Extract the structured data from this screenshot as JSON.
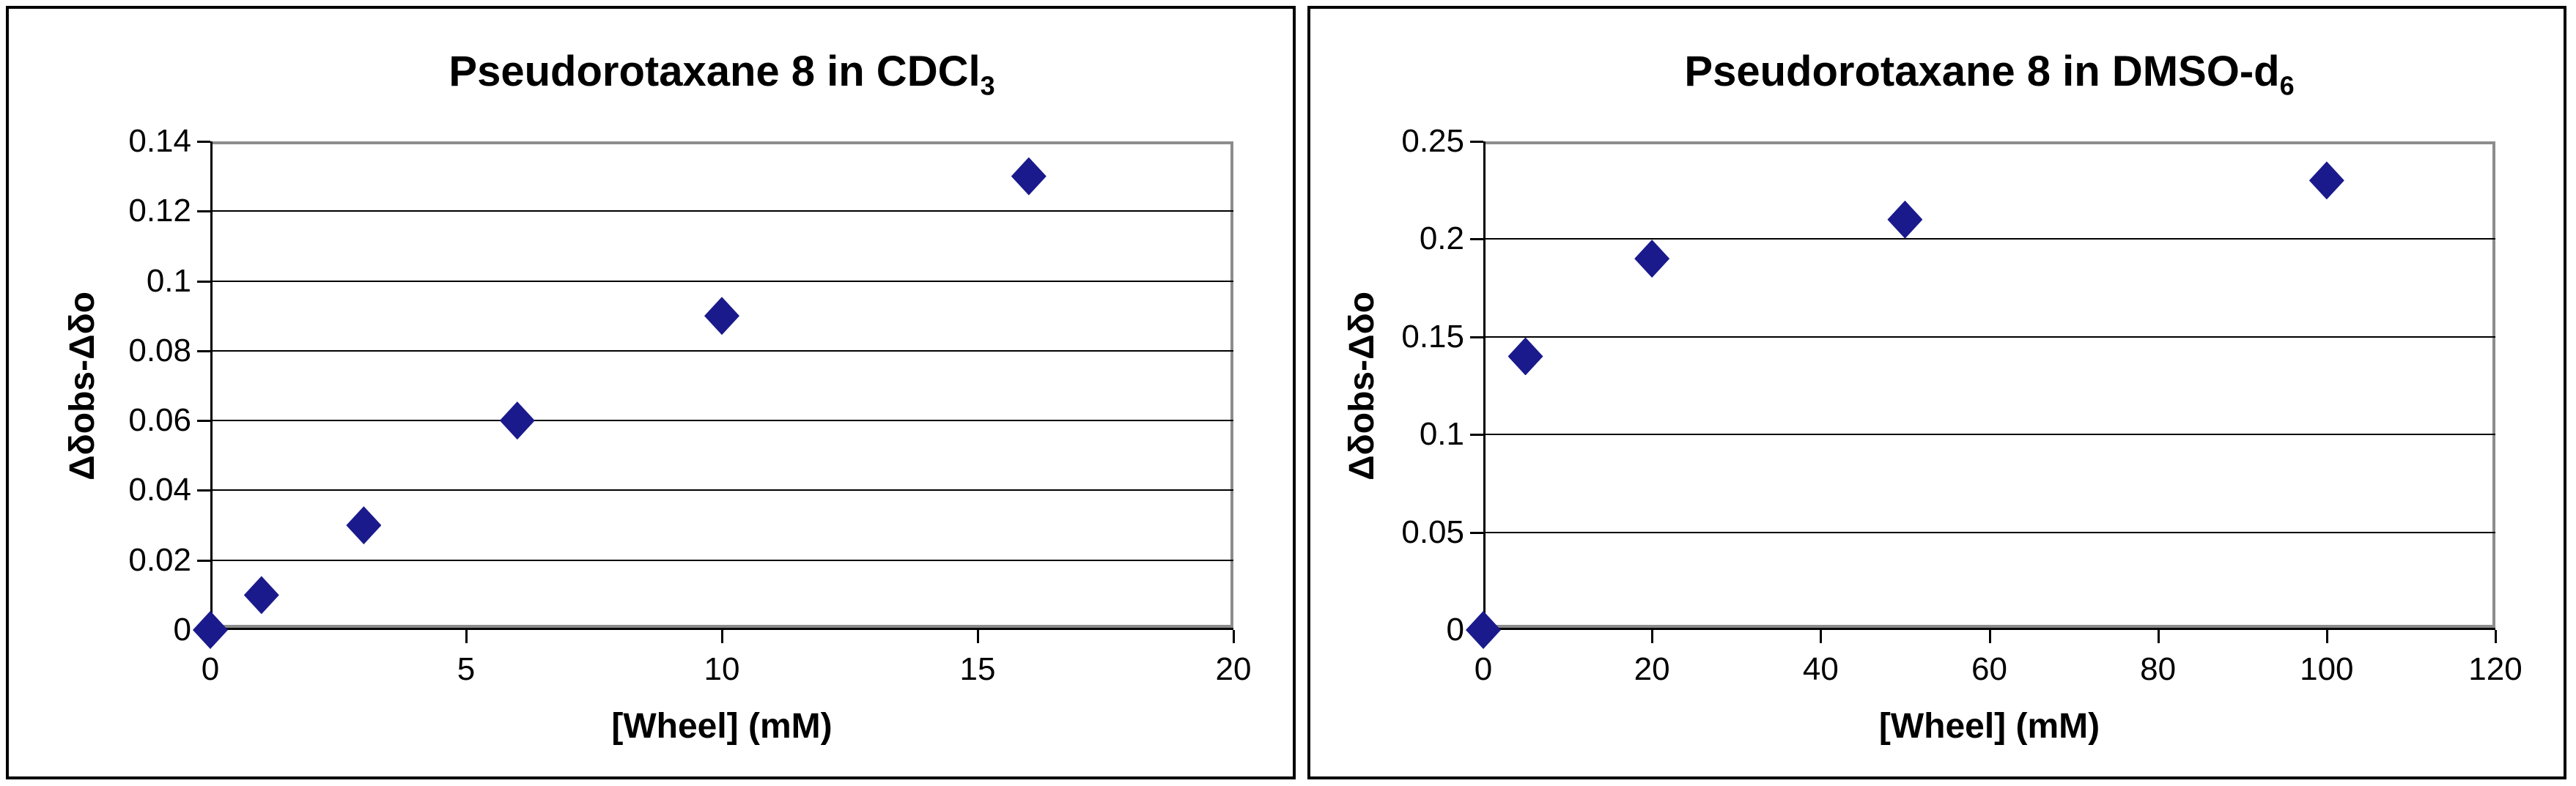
{
  "figure": {
    "background": "#ffffff",
    "panel_border_color": "#000000"
  },
  "chart_data": [
    {
      "type": "scatter",
      "title_main": "Pseudorotaxane 8 in CDCl",
      "title_subscript": "3",
      "xlabel": "[Wheel] (mM)",
      "ylabel": "Δδobs-Δδo",
      "x": [
        0,
        1,
        3,
        6,
        10,
        16
      ],
      "y": [
        0,
        0.01,
        0.03,
        0.06,
        0.09,
        0.13
      ],
      "xlim": [
        0,
        20
      ],
      "ylim": [
        0,
        0.14
      ],
      "x_tick_labels": [
        "0",
        "5",
        "10",
        "15",
        "20"
      ],
      "y_tick_labels": [
        "0",
        "0.02",
        "0.04",
        "0.06",
        "0.08",
        "0.1",
        "0.12",
        "0.14"
      ],
      "grid": "horizontal",
      "legend": "none",
      "marker": "diamond",
      "marker_color": "#1a1a8c",
      "gridline_color": "#000000",
      "axis_color": "#000000",
      "plot_border_color": "#8c8c8c"
    },
    {
      "type": "scatter",
      "title_main": "Pseudorotaxane 8 in DMSO-d",
      "title_subscript": "6",
      "xlabel": "[Wheel] (mM)",
      "ylabel": "Δδobs-Δδo",
      "x": [
        0,
        5,
        20,
        50,
        100
      ],
      "y": [
        0,
        0.14,
        0.19,
        0.21,
        0.23
      ],
      "xlim": [
        0,
        120
      ],
      "ylim": [
        0,
        0.25
      ],
      "x_tick_labels": [
        "0",
        "20",
        "40",
        "60",
        "80",
        "100",
        "120"
      ],
      "y_tick_labels": [
        "0",
        "0.05",
        "0.1",
        "0.15",
        "0.2",
        "0.25"
      ],
      "grid": "horizontal",
      "legend": "none",
      "marker": "diamond",
      "marker_color": "#1a1a8c",
      "gridline_color": "#000000",
      "axis_color": "#000000",
      "plot_border_color": "#8c8c8c"
    }
  ]
}
